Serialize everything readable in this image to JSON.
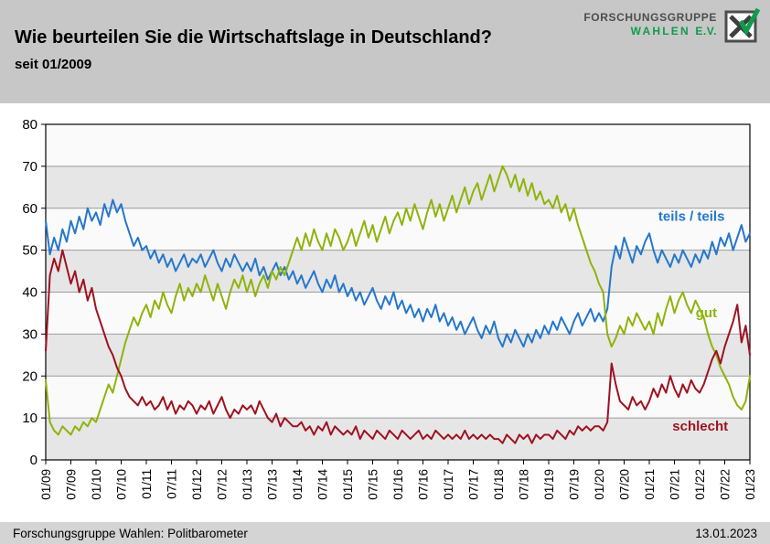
{
  "header": {
    "title": "Wie beurteilen Sie die Wirtschaftslage in Deutschland?",
    "subtitle": "seit 01/2009",
    "logo": {
      "line1": "FORSCHUNGSGRUPPE",
      "line2": "WAHLEN",
      "line3": "E.V.",
      "text_color": "#4d4d4d",
      "green": "#0f9b4c"
    }
  },
  "footer": {
    "source": "Forschungsgruppe Wahlen: Politbarometer",
    "date": "13.01.2023"
  },
  "chart_data": {
    "type": "line",
    "title": "Wie beurteilen Sie die Wirtschaftslage in Deutschland?",
    "subtitle": "seit 01/2009",
    "ylim": [
      0,
      80
    ],
    "ytick_step": 10,
    "grid": true,
    "band_colors": [
      "#e6e6e6",
      "#fafafa"
    ],
    "x_unit": "month",
    "x_start": "01/2009",
    "x_end": "01/2023",
    "x_tick_interval": 6,
    "x_tick_labels": [
      "01/09",
      "07/09",
      "01/10",
      "07/10",
      "01/11",
      "07/11",
      "01/12",
      "07/12",
      "01/13",
      "07/13",
      "01/14",
      "07/14",
      "01/15",
      "07/15",
      "01/16",
      "07/16",
      "01/17",
      "07/17",
      "01/18",
      "07/18",
      "01/19",
      "07/19",
      "01/20",
      "07/20",
      "01/21",
      "07/21",
      "01/22",
      "07/22",
      "01/23"
    ],
    "series": [
      {
        "name": "teils / teils",
        "color": "#2577cc",
        "label_pos": {
          "x_frac": 0.87,
          "y_value": 57
        },
        "values": [
          57,
          49,
          53,
          50,
          55,
          52,
          57,
          54,
          58,
          55,
          60,
          57,
          59,
          56,
          61,
          58,
          62,
          59,
          61,
          57,
          54,
          51,
          53,
          50,
          51,
          48,
          50,
          47,
          49,
          46,
          48,
          45,
          47,
          49,
          46,
          48,
          47,
          49,
          46,
          48,
          50,
          47,
          45,
          48,
          46,
          49,
          47,
          45,
          47,
          45,
          48,
          44,
          46,
          43,
          45,
          47,
          44,
          46,
          43,
          45,
          42,
          44,
          41,
          43,
          45,
          42,
          40,
          43,
          41,
          44,
          40,
          42,
          39,
          41,
          38,
          40,
          37,
          39,
          41,
          38,
          36,
          39,
          37,
          40,
          36,
          38,
          35,
          37,
          34,
          36,
          33,
          36,
          34,
          37,
          33,
          35,
          32,
          34,
          31,
          33,
          30,
          32,
          34,
          31,
          29,
          32,
          30,
          33,
          29,
          27,
          30,
          28,
          31,
          29,
          27,
          30,
          28,
          31,
          29,
          32,
          30,
          33,
          31,
          34,
          32,
          30,
          33,
          35,
          32,
          34,
          36,
          33,
          35,
          33,
          36,
          46,
          51,
          48,
          53,
          50,
          47,
          51,
          49,
          52,
          54,
          50,
          47,
          50,
          48,
          46,
          49,
          47,
          50,
          48,
          46,
          49,
          47,
          50,
          48,
          52,
          49,
          53,
          51,
          54,
          50,
          53,
          56,
          52,
          54
        ]
      },
      {
        "name": "gut",
        "color": "#8fb30c",
        "label_pos": {
          "x_frac": 0.923,
          "y_value": 34
        },
        "values": [
          19,
          9,
          7,
          6,
          8,
          7,
          6,
          8,
          7,
          9,
          8,
          10,
          9,
          12,
          15,
          18,
          16,
          20,
          24,
          28,
          31,
          34,
          32,
          35,
          37,
          34,
          38,
          36,
          40,
          37,
          35,
          39,
          42,
          38,
          41,
          39,
          42,
          40,
          44,
          41,
          38,
          42,
          39,
          36,
          40,
          43,
          41,
          44,
          40,
          43,
          39,
          42,
          44,
          41,
          45,
          43,
          46,
          44,
          47,
          50,
          53,
          50,
          54,
          51,
          55,
          52,
          50,
          54,
          51,
          55,
          53,
          50,
          52,
          55,
          51,
          54,
          57,
          53,
          56,
          52,
          55,
          58,
          54,
          57,
          59,
          56,
          60,
          57,
          61,
          58,
          55,
          59,
          62,
          58,
          61,
          57,
          60,
          63,
          59,
          62,
          65,
          61,
          64,
          66,
          62,
          65,
          68,
          64,
          67,
          70,
          68,
          65,
          68,
          64,
          67,
          63,
          66,
          62,
          64,
          61,
          62,
          60,
          63,
          59,
          61,
          57,
          60,
          56,
          53,
          50,
          47,
          45,
          42,
          40,
          30,
          27,
          29,
          32,
          30,
          34,
          32,
          35,
          33,
          31,
          33,
          30,
          35,
          32,
          36,
          39,
          35,
          38,
          40,
          37,
          35,
          38,
          36,
          34,
          30,
          27,
          25,
          22,
          20,
          18,
          15,
          13,
          12,
          14,
          20
        ]
      },
      {
        "name": "schlecht",
        "color": "#9e1220",
        "label_pos": {
          "x_frac": 0.89,
          "y_value": 7
        },
        "values": [
          26,
          44,
          48,
          45,
          50,
          46,
          42,
          45,
          40,
          43,
          38,
          41,
          36,
          33,
          30,
          27,
          25,
          22,
          20,
          17,
          15,
          14,
          13,
          15,
          13,
          14,
          12,
          13,
          15,
          12,
          14,
          11,
          13,
          12,
          14,
          13,
          11,
          13,
          12,
          14,
          11,
          13,
          15,
          12,
          10,
          12,
          11,
          13,
          12,
          13,
          11,
          14,
          12,
          10,
          9,
          11,
          8,
          10,
          9,
          8,
          8,
          9,
          7,
          8,
          6,
          8,
          7,
          9,
          6,
          8,
          7,
          6,
          7,
          6,
          8,
          5,
          7,
          6,
          5,
          7,
          6,
          5,
          7,
          6,
          5,
          7,
          6,
          5,
          6,
          7,
          5,
          6,
          5,
          7,
          6,
          5,
          6,
          5,
          6,
          5,
          7,
          5,
          6,
          5,
          6,
          5,
          6,
          5,
          5,
          4,
          6,
          5,
          4,
          6,
          5,
          6,
          4,
          6,
          5,
          6,
          6,
          5,
          7,
          6,
          5,
          7,
          6,
          8,
          7,
          8,
          7,
          8,
          8,
          7,
          9,
          23,
          18,
          14,
          13,
          12,
          15,
          13,
          14,
          12,
          14,
          17,
          15,
          18,
          16,
          20,
          17,
          15,
          18,
          16,
          19,
          17,
          16,
          18,
          21,
          24,
          26,
          23,
          27,
          30,
          33,
          37,
          28,
          32,
          25
        ]
      }
    ],
    "legend_position": "inline-right",
    "source": "Forschungsgruppe Wahlen: Politbarometer",
    "date": "13.01.2023"
  }
}
